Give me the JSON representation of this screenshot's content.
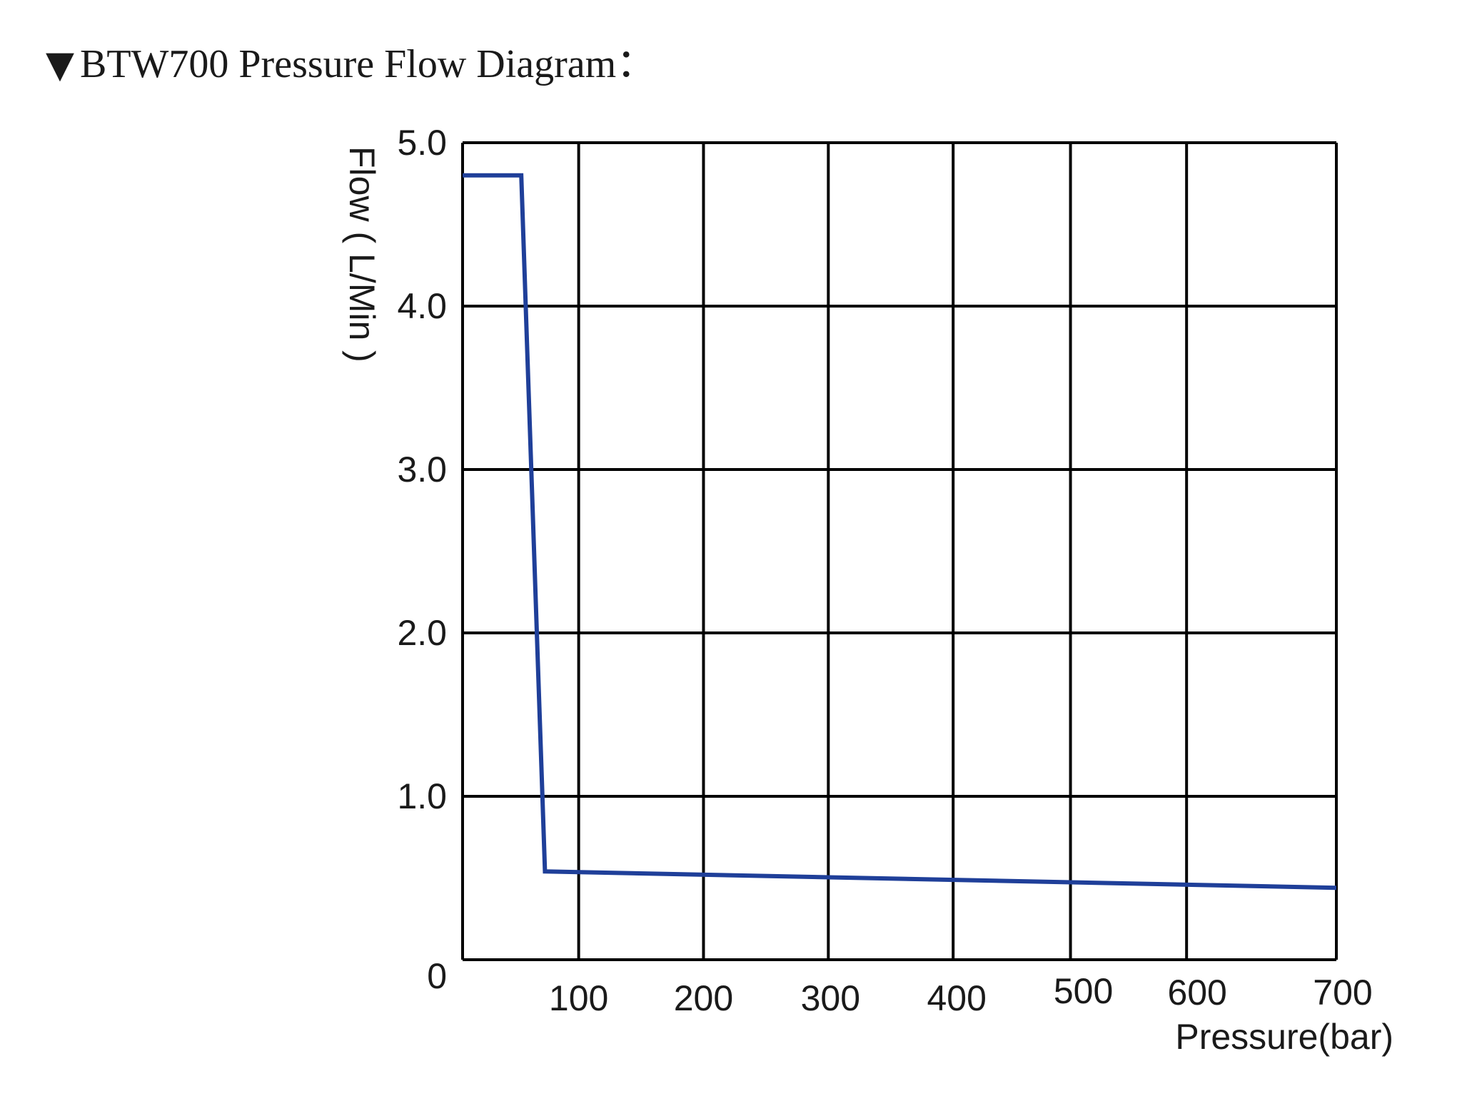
{
  "header": {
    "marker": "▼",
    "title": "BTW700 Pressure Flow Diagram",
    "suffix": "："
  },
  "chart_data": {
    "type": "line",
    "title": "BTW700 Pressure Flow Diagram",
    "xlabel": "Pressure(bar)",
    "ylabel": "Flow ( L/Min )",
    "xlim": [
      0,
      700
    ],
    "ylim": [
      0,
      5.0
    ],
    "x_ticks": [
      100,
      200,
      300,
      400,
      500,
      600,
      700
    ],
    "x_tick_labels": [
      "100",
      "200",
      "300",
      "400",
      "500",
      "600",
      "700"
    ],
    "x_grid": [
      93,
      193,
      293,
      393,
      487,
      580,
      700
    ],
    "y_ticks": [
      0,
      1.0,
      2.0,
      3.0,
      4.0,
      5.0
    ],
    "y_tick_labels": [
      "0",
      "1.0",
      "2.0",
      "3.0",
      "4.0",
      "5.0"
    ],
    "grid": true,
    "line_color": "#1f3f99",
    "grid_color": "#000000",
    "series": [
      {
        "x": [
          0,
          47,
          66,
          700
        ],
        "y": [
          4.8,
          4.8,
          0.54,
          0.44
        ]
      }
    ]
  }
}
